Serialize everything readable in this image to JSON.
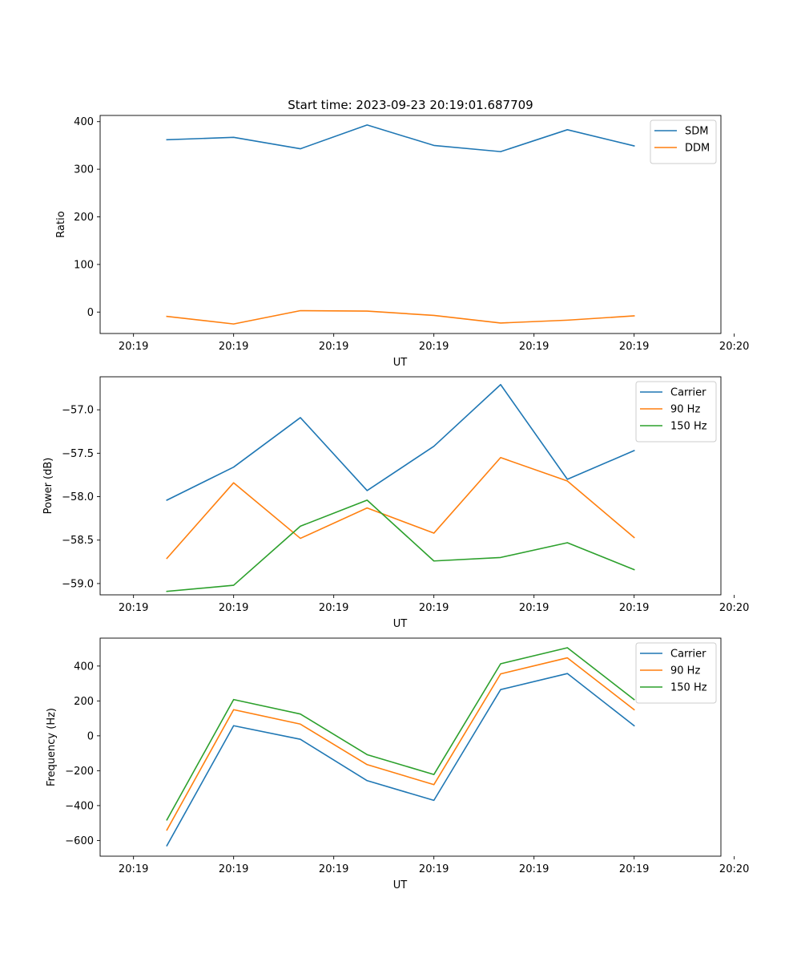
{
  "figure": {
    "title": "Start time: 2023-09-23 20:19:01.687709"
  },
  "chart_data": [
    {
      "type": "line",
      "title": "Start time: 2023-09-23 20:19:01.687709",
      "xlabel": "UT",
      "ylabel": "Ratio",
      "xlim": [
        -0.5,
        8.8
      ],
      "ylim": [
        -45,
        413
      ],
      "x": [
        0.5,
        1.5,
        2.5,
        3.5,
        4.5,
        5.5,
        6.5,
        7.5
      ],
      "xticks": [
        0,
        1.5,
        3,
        4.5,
        6,
        7.5,
        9
      ],
      "xtick_labels": [
        "20:19",
        "20:19",
        "20:19",
        "20:19",
        "20:19",
        "20:19",
        "20:20"
      ],
      "yticks": [
        0,
        100,
        200,
        300,
        400
      ],
      "ytick_labels": [
        "0",
        "100",
        "200",
        "300",
        "400"
      ],
      "legend_position": "top-right",
      "series": [
        {
          "name": "SDM",
          "color": "#1f77b4",
          "values": [
            362,
            367,
            343,
            393,
            350,
            337,
            383,
            349
          ]
        },
        {
          "name": "DDM",
          "color": "#ff7f0e",
          "values": [
            -9,
            -25,
            3,
            2,
            -7,
            -23,
            -17,
            -8
          ]
        }
      ]
    },
    {
      "type": "line",
      "title": "",
      "xlabel": "UT",
      "ylabel": "Power (dB)",
      "xlim": [
        -0.5,
        8.8
      ],
      "ylim": [
        -59.13,
        -56.62
      ],
      "x": [
        0.5,
        1.5,
        2.5,
        3.5,
        4.5,
        5.5,
        6.5,
        7.5
      ],
      "xticks": [
        0,
        1.5,
        3,
        4.5,
        6,
        7.5,
        9
      ],
      "xtick_labels": [
        "20:19",
        "20:19",
        "20:19",
        "20:19",
        "20:19",
        "20:19",
        "20:20"
      ],
      "yticks": [
        -59.0,
        -58.5,
        -58.0,
        -57.5,
        -57.0
      ],
      "ytick_labels": [
        "−59.0",
        "−58.5",
        "−58.0",
        "−57.5",
        "−57.0"
      ],
      "legend_position": "top-right",
      "series": [
        {
          "name": "Carrier",
          "color": "#1f77b4",
          "values": [
            -58.04,
            -57.66,
            -57.09,
            -57.93,
            -57.42,
            -56.71,
            -57.8,
            -57.47
          ]
        },
        {
          "name": "90 Hz",
          "color": "#ff7f0e",
          "values": [
            -58.71,
            -57.84,
            -58.48,
            -58.13,
            -58.42,
            -57.55,
            -57.82,
            -58.47
          ]
        },
        {
          "name": "150 Hz",
          "color": "#2ca02c",
          "values": [
            -59.09,
            -59.02,
            -58.34,
            -58.04,
            -58.74,
            -58.7,
            -58.53,
            -58.84
          ]
        }
      ]
    },
    {
      "type": "line",
      "title": "",
      "xlabel": "UT",
      "ylabel": "Frequency (Hz)",
      "xlim": [
        -0.5,
        8.8
      ],
      "ylim": [
        -690,
        560
      ],
      "x": [
        0.5,
        1.5,
        2.5,
        3.5,
        4.5,
        5.5,
        6.5,
        7.5
      ],
      "xticks": [
        0,
        1.5,
        3,
        4.5,
        6,
        7.5,
        9
      ],
      "xtick_labels": [
        "20:19",
        "20:19",
        "20:19",
        "20:19",
        "20:19",
        "20:19",
        "20:20"
      ],
      "yticks": [
        -600,
        -400,
        -200,
        0,
        200,
        400
      ],
      "ytick_labels": [
        "−600",
        "−400",
        "−200",
        "0",
        "200",
        "400"
      ],
      "legend_position": "top-right",
      "series": [
        {
          "name": "Carrier",
          "color": "#1f77b4",
          "values": [
            -630,
            58,
            -20,
            -257,
            -370,
            265,
            357,
            58
          ]
        },
        {
          "name": "90 Hz",
          "color": "#ff7f0e",
          "values": [
            -540,
            150,
            67,
            -165,
            -280,
            355,
            447,
            150
          ]
        },
        {
          "name": "150 Hz",
          "color": "#2ca02c",
          "values": [
            -482,
            208,
            125,
            -108,
            -222,
            413,
            505,
            208
          ]
        }
      ]
    }
  ]
}
